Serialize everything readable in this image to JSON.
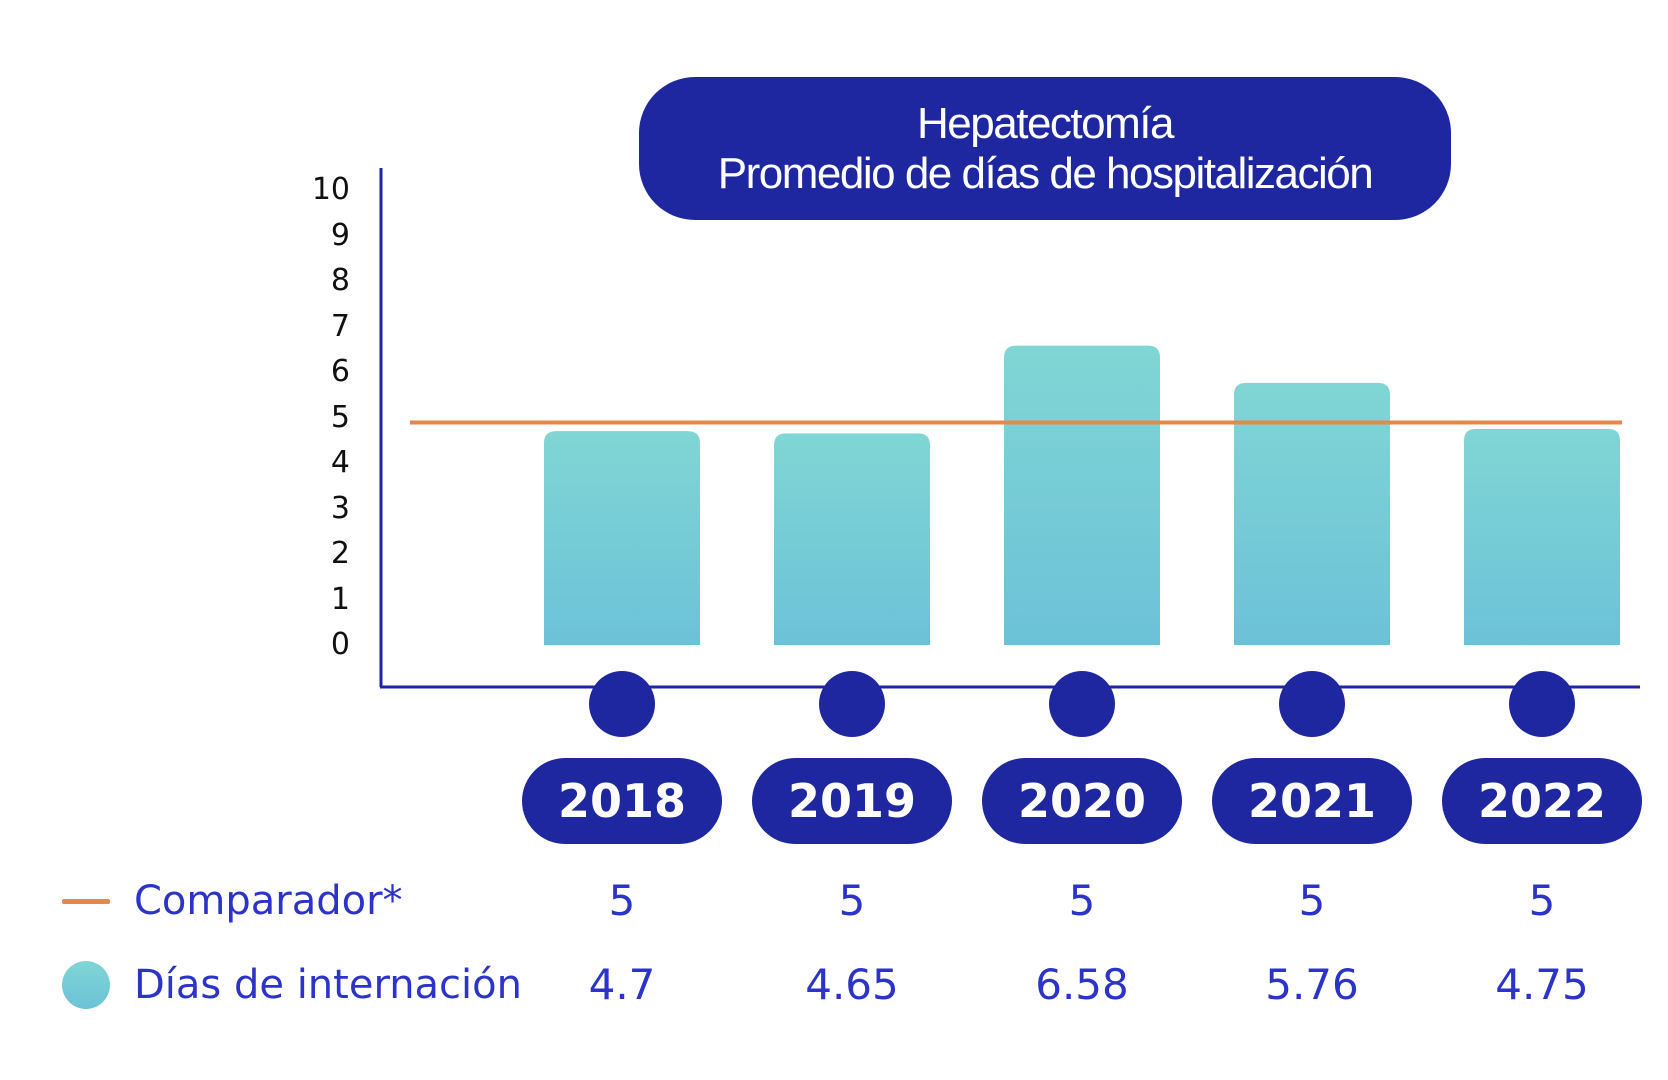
{
  "chart_data": {
    "type": "bar",
    "title": [
      "Hepatectomía",
      "Promedio de días de hospitalización"
    ],
    "categories": [
      "2018",
      "2019",
      "2020",
      "2021",
      "2022"
    ],
    "series": [
      {
        "name": "Días de internación",
        "type": "bar",
        "values": [
          4.7,
          4.65,
          6.58,
          5.76,
          4.75
        ]
      },
      {
        "name": "Comparador*",
        "type": "line",
        "values": [
          5,
          5,
          5,
          5,
          5
        ]
      }
    ],
    "yticks": [
      "10",
      "9",
      "8",
      "7",
      "6",
      "5",
      "4",
      "3",
      "2",
      "1",
      "0"
    ],
    "ylim": [
      0,
      10
    ],
    "legend_position": "bottom-left",
    "table": {
      "comparador_values": [
        "5",
        "5",
        "5",
        "5",
        "5"
      ],
      "internacion_values": [
        "4.7",
        "4.65",
        "6.58",
        "5.76",
        "4.75"
      ]
    },
    "colors": {
      "navy": "#1e27a0",
      "bar_top": "#80d6d4",
      "bar_bottom": "#6cc1d8",
      "comparator_line": "#e8874a",
      "label_blue": "#2b33c8"
    }
  }
}
